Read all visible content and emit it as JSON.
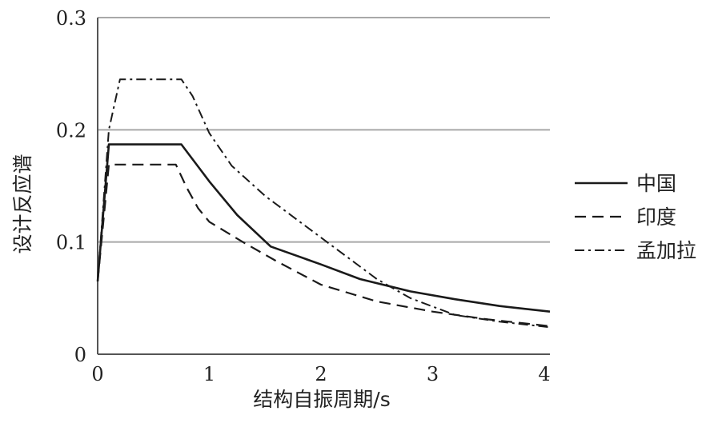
{
  "chart_data": {
    "type": "line",
    "title": "",
    "xlabel": "结构自振周期/s",
    "ylabel": "设计反应谱",
    "xlim": [
      0,
      4.05
    ],
    "ylim": [
      0,
      0.3
    ],
    "x_ticks": [
      "0",
      "1",
      "2",
      "3",
      "4"
    ],
    "y_ticks": [
      "0",
      "0.1",
      "0.2",
      "0.3"
    ],
    "grid": "horizontal",
    "legend_position": "right",
    "series": [
      {
        "name": "中国",
        "dash": "solid",
        "points": [
          [
            0,
            0.065
          ],
          [
            0.1,
            0.187
          ],
          [
            0.2,
            0.187
          ],
          [
            0.75,
            0.187
          ],
          [
            1.0,
            0.154
          ],
          [
            1.25,
            0.124
          ],
          [
            1.55,
            0.096
          ],
          [
            2.0,
            0.08
          ],
          [
            2.35,
            0.067
          ],
          [
            2.8,
            0.056
          ],
          [
            3.2,
            0.049
          ],
          [
            3.6,
            0.043
          ],
          [
            4.05,
            0.038
          ]
        ]
      },
      {
        "name": "印度",
        "dash": "dashed",
        "points": [
          [
            0,
            0.065
          ],
          [
            0.1,
            0.169
          ],
          [
            0.2,
            0.169
          ],
          [
            0.7,
            0.169
          ],
          [
            0.8,
            0.148
          ],
          [
            0.9,
            0.13
          ],
          [
            1.0,
            0.118
          ],
          [
            1.3,
            0.1
          ],
          [
            1.6,
            0.083
          ],
          [
            2.0,
            0.062
          ],
          [
            2.5,
            0.047
          ],
          [
            3.0,
            0.038
          ],
          [
            3.5,
            0.031
          ],
          [
            4.05,
            0.025
          ]
        ]
      },
      {
        "name": "孟加拉",
        "dash": "dashdot",
        "points": [
          [
            0,
            0.065
          ],
          [
            0.1,
            0.2
          ],
          [
            0.2,
            0.245
          ],
          [
            0.75,
            0.245
          ],
          [
            0.85,
            0.23
          ],
          [
            1.0,
            0.197
          ],
          [
            1.2,
            0.168
          ],
          [
            1.5,
            0.141
          ],
          [
            2.0,
            0.104
          ],
          [
            2.5,
            0.067
          ],
          [
            2.8,
            0.05
          ],
          [
            3.2,
            0.035
          ],
          [
            3.6,
            0.029
          ],
          [
            4.05,
            0.024
          ]
        ]
      }
    ]
  }
}
